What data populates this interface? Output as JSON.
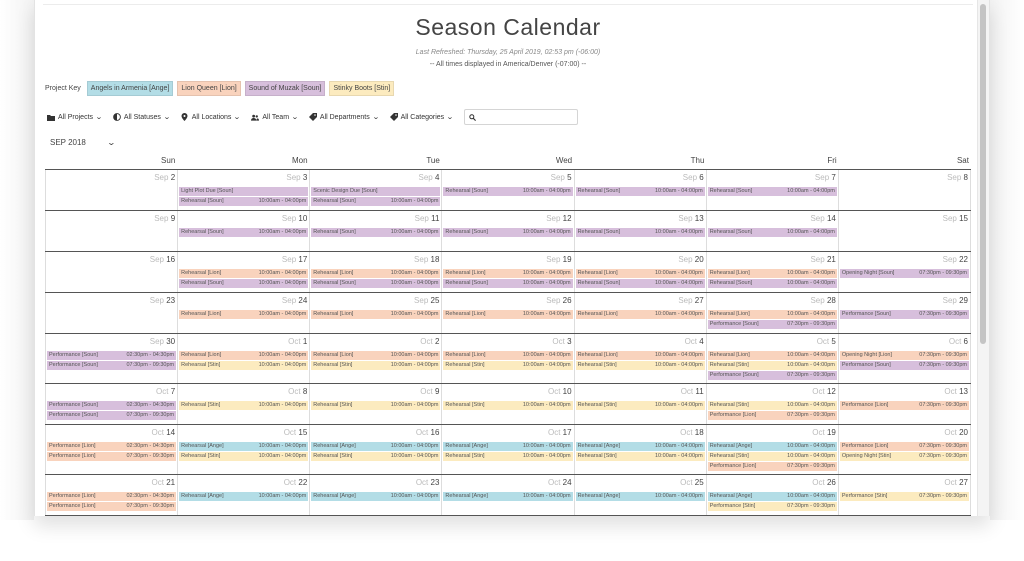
{
  "page_title": "Season Calendar",
  "last_refreshed": "Last Refreshed: Thursday, 25 April 2019, 02:53 pm (-06:00)",
  "timezone_note": "-- All times displayed in America/Denver (-07:00) --",
  "project_key": {
    "label": "Project Key",
    "items": [
      {
        "label": "Angels in Armenia [Ange]",
        "color": "#b3dde6"
      },
      {
        "label": "Lion Queen [Lion]",
        "color": "#f9d3bd"
      },
      {
        "label": "Sound of Muzak [Soun]",
        "color": "#d7bfdc"
      },
      {
        "label": "Stinky Boots [Stin]",
        "color": "#fcebbf"
      }
    ]
  },
  "filters": [
    {
      "label": "All Projects",
      "icon": "folder-icon"
    },
    {
      "label": "All Statuses",
      "icon": "half-circle-icon"
    },
    {
      "label": "All Locations",
      "icon": "location-pin-icon"
    },
    {
      "label": "All Team",
      "icon": "team-icon"
    },
    {
      "label": "All Departments",
      "icon": "tag-icon"
    },
    {
      "label": "All Categories",
      "icon": "tag-icon"
    }
  ],
  "search": {
    "placeholder": ""
  },
  "month_selector": {
    "value": "SEP 2018"
  },
  "weekdays": [
    "Sun",
    "Mon",
    "Tue",
    "Wed",
    "Thu",
    "Fri",
    "Sat"
  ],
  "colors": {
    "Ange": "#b3dde6",
    "Lion": "#f9d3bd",
    "Soun": "#d7bfdc",
    "Stin": "#fcebbf"
  },
  "weeks": [
    [
      {
        "m": "Sep",
        "d": "2",
        "ev": []
      },
      {
        "m": "Sep",
        "d": "3",
        "ev": [
          {
            "t": "Light Plot Due [Soun]",
            "time": "",
            "p": "Soun"
          },
          {
            "t": "Rehearsal [Soun]",
            "time": "10:00am - 04:00pm",
            "p": "Soun"
          }
        ]
      },
      {
        "m": "Sep",
        "d": "4",
        "ev": [
          {
            "t": "Scenic Design Due [Soun]",
            "time": "",
            "p": "Soun"
          },
          {
            "t": "Rehearsal [Soun]",
            "time": "10:00am - 04:00pm",
            "p": "Soun"
          }
        ]
      },
      {
        "m": "Sep",
        "d": "5",
        "ev": [
          {
            "t": "Rehearsal [Soun]",
            "time": "10:00am - 04:00pm",
            "p": "Soun"
          }
        ]
      },
      {
        "m": "Sep",
        "d": "6",
        "ev": [
          {
            "t": "Rehearsal [Soun]",
            "time": "10:00am - 04:00pm",
            "p": "Soun"
          }
        ]
      },
      {
        "m": "Sep",
        "d": "7",
        "ev": [
          {
            "t": "Rehearsal [Soun]",
            "time": "10:00am - 04:00pm",
            "p": "Soun"
          }
        ]
      },
      {
        "m": "Sep",
        "d": "8",
        "ev": []
      }
    ],
    [
      {
        "m": "Sep",
        "d": "9",
        "ev": []
      },
      {
        "m": "Sep",
        "d": "10",
        "ev": [
          {
            "t": "Rehearsal [Soun]",
            "time": "10:00am - 04:00pm",
            "p": "Soun"
          }
        ]
      },
      {
        "m": "Sep",
        "d": "11",
        "ev": [
          {
            "t": "Rehearsal [Soun]",
            "time": "10:00am - 04:00pm",
            "p": "Soun"
          }
        ]
      },
      {
        "m": "Sep",
        "d": "12",
        "ev": [
          {
            "t": "Rehearsal [Soun]",
            "time": "10:00am - 04:00pm",
            "p": "Soun"
          }
        ]
      },
      {
        "m": "Sep",
        "d": "13",
        "ev": [
          {
            "t": "Rehearsal [Soun]",
            "time": "10:00am - 04:00pm",
            "p": "Soun"
          }
        ]
      },
      {
        "m": "Sep",
        "d": "14",
        "ev": [
          {
            "t": "Rehearsal [Soun]",
            "time": "10:00am - 04:00pm",
            "p": "Soun"
          }
        ]
      },
      {
        "m": "Sep",
        "d": "15",
        "ev": []
      }
    ],
    [
      {
        "m": "Sep",
        "d": "16",
        "ev": []
      },
      {
        "m": "Sep",
        "d": "17",
        "ev": [
          {
            "t": "Rehearsal [Lion]",
            "time": "10:00am - 04:00pm",
            "p": "Lion"
          },
          {
            "t": "Rehearsal [Soun]",
            "time": "10:00am - 04:00pm",
            "p": "Soun"
          }
        ]
      },
      {
        "m": "Sep",
        "d": "18",
        "ev": [
          {
            "t": "Rehearsal [Lion]",
            "time": "10:00am - 04:00pm",
            "p": "Lion"
          },
          {
            "t": "Rehearsal [Soun]",
            "time": "10:00am - 04:00pm",
            "p": "Soun"
          }
        ]
      },
      {
        "m": "Sep",
        "d": "19",
        "ev": [
          {
            "t": "Rehearsal [Lion]",
            "time": "10:00am - 04:00pm",
            "p": "Lion"
          },
          {
            "t": "Rehearsal [Soun]",
            "time": "10:00am - 04:00pm",
            "p": "Soun"
          }
        ]
      },
      {
        "m": "Sep",
        "d": "20",
        "ev": [
          {
            "t": "Rehearsal [Lion]",
            "time": "10:00am - 04:00pm",
            "p": "Lion"
          },
          {
            "t": "Rehearsal [Soun]",
            "time": "10:00am - 04:00pm",
            "p": "Soun"
          }
        ]
      },
      {
        "m": "Sep",
        "d": "21",
        "ev": [
          {
            "t": "Rehearsal [Lion]",
            "time": "10:00am - 04:00pm",
            "p": "Lion"
          },
          {
            "t": "Rehearsal [Soun]",
            "time": "10:00am - 04:00pm",
            "p": "Soun"
          }
        ]
      },
      {
        "m": "Sep",
        "d": "22",
        "ev": [
          {
            "t": "Opening Night [Soun]",
            "time": "07:30pm - 09:30pm",
            "p": "Soun"
          }
        ]
      }
    ],
    [
      {
        "m": "Sep",
        "d": "23",
        "ev": []
      },
      {
        "m": "Sep",
        "d": "24",
        "ev": [
          {
            "t": "Rehearsal [Lion]",
            "time": "10:00am - 04:00pm",
            "p": "Lion"
          }
        ]
      },
      {
        "m": "Sep",
        "d": "25",
        "ev": [
          {
            "t": "Rehearsal [Lion]",
            "time": "10:00am - 04:00pm",
            "p": "Lion"
          }
        ]
      },
      {
        "m": "Sep",
        "d": "26",
        "ev": [
          {
            "t": "Rehearsal [Lion]",
            "time": "10:00am - 04:00pm",
            "p": "Lion"
          }
        ]
      },
      {
        "m": "Sep",
        "d": "27",
        "ev": [
          {
            "t": "Rehearsal [Lion]",
            "time": "10:00am - 04:00pm",
            "p": "Lion"
          }
        ]
      },
      {
        "m": "Sep",
        "d": "28",
        "ev": [
          {
            "t": "Rehearsal [Lion]",
            "time": "10:00am - 04:00pm",
            "p": "Lion"
          },
          {
            "t": "Performance [Soun]",
            "time": "07:30pm - 09:30pm",
            "p": "Soun"
          }
        ]
      },
      {
        "m": "Sep",
        "d": "29",
        "ev": [
          {
            "t": "Performance [Soun]",
            "time": "07:30pm - 09:30pm",
            "p": "Soun"
          }
        ]
      }
    ],
    [
      {
        "m": "Sep",
        "d": "30",
        "ev": [
          {
            "t": "Performance [Soun]",
            "time": "02:30pm - 04:30pm",
            "p": "Soun"
          },
          {
            "t": "Performance [Soun]",
            "time": "07:30pm - 09:30pm",
            "p": "Soun"
          }
        ]
      },
      {
        "m": "Oct",
        "d": "1",
        "ev": [
          {
            "t": "Rehearsal [Lion]",
            "time": "10:00am - 04:00pm",
            "p": "Lion"
          },
          {
            "t": "Rehearsal [Stin]",
            "time": "10:00am - 04:00pm",
            "p": "Stin"
          }
        ]
      },
      {
        "m": "Oct",
        "d": "2",
        "ev": [
          {
            "t": "Rehearsal [Lion]",
            "time": "10:00am - 04:00pm",
            "p": "Lion"
          },
          {
            "t": "Rehearsal [Stin]",
            "time": "10:00am - 04:00pm",
            "p": "Stin"
          }
        ]
      },
      {
        "m": "Oct",
        "d": "3",
        "ev": [
          {
            "t": "Rehearsal [Lion]",
            "time": "10:00am - 04:00pm",
            "p": "Lion"
          },
          {
            "t": "Rehearsal [Stin]",
            "time": "10:00am - 04:00pm",
            "p": "Stin"
          }
        ]
      },
      {
        "m": "Oct",
        "d": "4",
        "ev": [
          {
            "t": "Rehearsal [Lion]",
            "time": "10:00am - 04:00pm",
            "p": "Lion"
          },
          {
            "t": "Rehearsal [Stin]",
            "time": "10:00am - 04:00pm",
            "p": "Stin"
          }
        ]
      },
      {
        "m": "Oct",
        "d": "5",
        "ev": [
          {
            "t": "Rehearsal [Lion]",
            "time": "10:00am - 04:00pm",
            "p": "Lion"
          },
          {
            "t": "Rehearsal [Stin]",
            "time": "10:00am - 04:00pm",
            "p": "Stin"
          },
          {
            "t": "Performance [Soun]",
            "time": "07:30pm - 09:30pm",
            "p": "Soun"
          }
        ]
      },
      {
        "m": "Oct",
        "d": "6",
        "ev": [
          {
            "t": "Opening Night [Lion]",
            "time": "07:30pm - 09:30pm",
            "p": "Lion"
          },
          {
            "t": "Performance [Soun]",
            "time": "07:30pm - 09:30pm",
            "p": "Soun"
          }
        ]
      }
    ],
    [
      {
        "m": "Oct",
        "d": "7",
        "ev": [
          {
            "t": "Performance [Soun]",
            "time": "02:30pm - 04:30pm",
            "p": "Soun"
          },
          {
            "t": "Performance [Soun]",
            "time": "07:30pm - 09:30pm",
            "p": "Soun"
          }
        ]
      },
      {
        "m": "Oct",
        "d": "8",
        "ev": [
          {
            "t": "Rehearsal [Stin]",
            "time": "10:00am - 04:00pm",
            "p": "Stin"
          }
        ]
      },
      {
        "m": "Oct",
        "d": "9",
        "ev": [
          {
            "t": "Rehearsal [Stin]",
            "time": "10:00am - 04:00pm",
            "p": "Stin"
          }
        ]
      },
      {
        "m": "Oct",
        "d": "10",
        "ev": [
          {
            "t": "Rehearsal [Stin]",
            "time": "10:00am - 04:00pm",
            "p": "Stin"
          }
        ]
      },
      {
        "m": "Oct",
        "d": "11",
        "ev": [
          {
            "t": "Rehearsal [Stin]",
            "time": "10:00am - 04:00pm",
            "p": "Stin"
          }
        ]
      },
      {
        "m": "Oct",
        "d": "12",
        "ev": [
          {
            "t": "Rehearsal [Stin]",
            "time": "10:00am - 04:00pm",
            "p": "Stin"
          },
          {
            "t": "Performance [Lion]",
            "time": "07:30pm - 09:30pm",
            "p": "Lion"
          }
        ]
      },
      {
        "m": "Oct",
        "d": "13",
        "ev": [
          {
            "t": "Performance [Lion]",
            "time": "07:30pm - 09:30pm",
            "p": "Lion"
          }
        ]
      }
    ],
    [
      {
        "m": "Oct",
        "d": "14",
        "ev": [
          {
            "t": "Performance [Lion]",
            "time": "02:30pm - 04:30pm",
            "p": "Lion"
          },
          {
            "t": "Performance [Lion]",
            "time": "07:30pm - 09:30pm",
            "p": "Lion"
          }
        ]
      },
      {
        "m": "Oct",
        "d": "15",
        "ev": [
          {
            "t": "Rehearsal [Ange]",
            "time": "10:00am - 04:00pm",
            "p": "Ange"
          },
          {
            "t": "Rehearsal [Stin]",
            "time": "10:00am - 04:00pm",
            "p": "Stin"
          }
        ]
      },
      {
        "m": "Oct",
        "d": "16",
        "ev": [
          {
            "t": "Rehearsal [Ange]",
            "time": "10:00am - 04:00pm",
            "p": "Ange"
          },
          {
            "t": "Rehearsal [Stin]",
            "time": "10:00am - 04:00pm",
            "p": "Stin"
          }
        ]
      },
      {
        "m": "Oct",
        "d": "17",
        "ev": [
          {
            "t": "Rehearsal [Ange]",
            "time": "10:00am - 04:00pm",
            "p": "Ange"
          },
          {
            "t": "Rehearsal [Stin]",
            "time": "10:00am - 04:00pm",
            "p": "Stin"
          }
        ]
      },
      {
        "m": "Oct",
        "d": "18",
        "ev": [
          {
            "t": "Rehearsal [Ange]",
            "time": "10:00am - 04:00pm",
            "p": "Ange"
          },
          {
            "t": "Rehearsal [Stin]",
            "time": "10:00am - 04:00pm",
            "p": "Stin"
          }
        ]
      },
      {
        "m": "Oct",
        "d": "19",
        "ev": [
          {
            "t": "Rehearsal [Ange]",
            "time": "10:00am - 04:00pm",
            "p": "Ange"
          },
          {
            "t": "Rehearsal [Stin]",
            "time": "10:00am - 04:00pm",
            "p": "Stin"
          },
          {
            "t": "Performance [Lion]",
            "time": "07:30pm - 09:30pm",
            "p": "Lion"
          }
        ]
      },
      {
        "m": "Oct",
        "d": "20",
        "ev": [
          {
            "t": "Performance [Lion]",
            "time": "07:30pm - 09:30pm",
            "p": "Lion"
          },
          {
            "t": "Opening Night [Stin]",
            "time": "07:30pm - 09:30pm",
            "p": "Stin"
          }
        ]
      }
    ],
    [
      {
        "m": "Oct",
        "d": "21",
        "ev": [
          {
            "t": "Performance [Lion]",
            "time": "02:30pm - 04:30pm",
            "p": "Lion"
          },
          {
            "t": "Performance [Lion]",
            "time": "07:30pm - 09:30pm",
            "p": "Lion"
          }
        ]
      },
      {
        "m": "Oct",
        "d": "22",
        "ev": [
          {
            "t": "Rehearsal [Ange]",
            "time": "10:00am - 04:00pm",
            "p": "Ange"
          }
        ]
      },
      {
        "m": "Oct",
        "d": "23",
        "ev": [
          {
            "t": "Rehearsal [Ange]",
            "time": "10:00am - 04:00pm",
            "p": "Ange"
          }
        ]
      },
      {
        "m": "Oct",
        "d": "24",
        "ev": [
          {
            "t": "Rehearsal [Ange]",
            "time": "10:00am - 04:00pm",
            "p": "Ange"
          }
        ]
      },
      {
        "m": "Oct",
        "d": "25",
        "ev": [
          {
            "t": "Rehearsal [Ange]",
            "time": "10:00am - 04:00pm",
            "p": "Ange"
          }
        ]
      },
      {
        "m": "Oct",
        "d": "26",
        "ev": [
          {
            "t": "Rehearsal [Ange]",
            "time": "10:00am - 04:00pm",
            "p": "Ange"
          },
          {
            "t": "Performance [Stin]",
            "time": "07:30pm - 09:30pm",
            "p": "Stin"
          }
        ]
      },
      {
        "m": "Oct",
        "d": "27",
        "ev": [
          {
            "t": "Performance [Stin]",
            "time": "07:30pm - 09:30pm",
            "p": "Stin"
          }
        ]
      }
    ]
  ]
}
